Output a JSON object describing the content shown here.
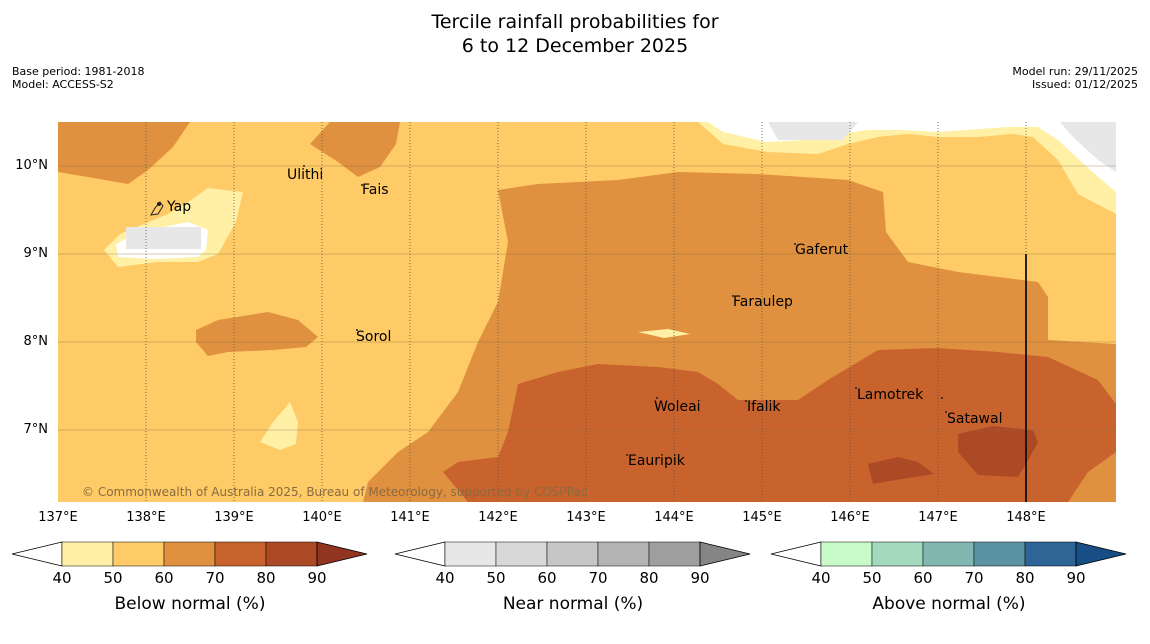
{
  "title": {
    "line1": "Tercile rainfall probabilities for",
    "line2": "6 to 12 December 2025"
  },
  "meta": {
    "base_period": "Base period: 1981-2018",
    "model": "Model: ACCESS-S2",
    "model_run": "Model run: 29/11/2025",
    "issued": "Issued: 01/12/2025"
  },
  "axes": {
    "lat_labels": [
      "10°N",
      "9°N",
      "8°N",
      "7°N"
    ],
    "lon_labels": [
      "137°E",
      "138°E",
      "139°E",
      "140°E",
      "141°E",
      "142°E",
      "143°E",
      "144°E",
      "145°E",
      "146°E",
      "147°E",
      "148°E"
    ]
  },
  "places": [
    "Yap",
    "Ulithi",
    "Fais",
    "Gaferut",
    "Faraulep",
    "Sorol",
    "Woleai",
    "Ifalik",
    "Lamotrek",
    "Satawal",
    "Eauripik"
  ],
  "copyright": "© Commonwealth of Australia 2025, Bureau of Meteorology, supported by COSPPac",
  "legends": [
    {
      "label": "Below normal (%)",
      "ticks": [
        "40",
        "50",
        "60",
        "70",
        "80",
        "90"
      ],
      "colors": [
        "#fff0a6",
        "#fecb66",
        "#e0913f",
        "#c9632e",
        "#ad4a26",
        "#913520"
      ]
    },
    {
      "label": "Near normal (%)",
      "ticks": [
        "40",
        "50",
        "60",
        "70",
        "80",
        "90"
      ],
      "colors": [
        "#e7e7e7",
        "#d8d8d8",
        "#c6c6c6",
        "#b4b4b4",
        "#9f9f9f",
        "#858585"
      ]
    },
    {
      "label": "Above normal (%)",
      "ticks": [
        "40",
        "50",
        "60",
        "70",
        "80",
        "90"
      ],
      "colors": [
        "#c8fbc9",
        "#a3d9bc",
        "#82b7b1",
        "#5b93a2",
        "#2f6497",
        "#174e86"
      ]
    }
  ],
  "colors": {
    "base_fill": "#fecb66",
    "grid": "#555555"
  }
}
